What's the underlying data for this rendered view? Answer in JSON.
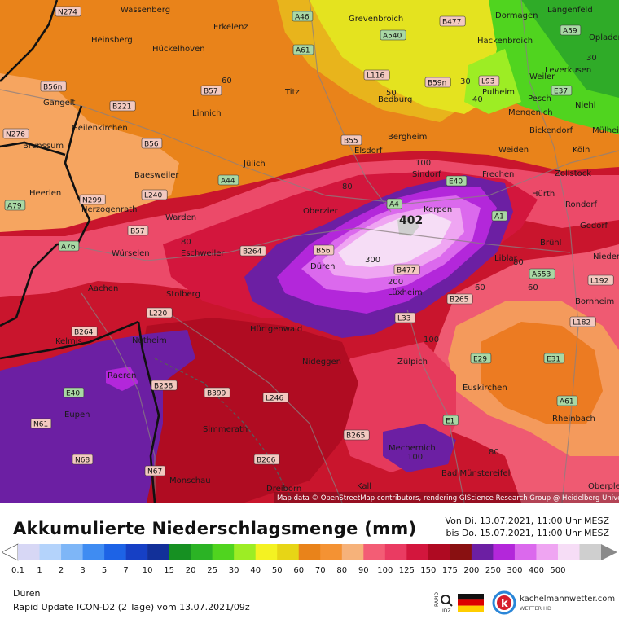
{
  "legend": {
    "title": "Akkumulierte Niederschlagsmenge (mm)",
    "period_from": "Von Di. 13.07.2021, 11:00 Uhr MESZ",
    "period_to": "bis Do. 15.07.2021, 11:00 Uhr MESZ",
    "location": "Düren",
    "model_run": "Rapid Update ICON-D2 (2 Tage) vom 13.07.2021/09z",
    "ticks": [
      "0.1",
      "1",
      "2",
      "3",
      "5",
      "7",
      "10",
      "15",
      "20",
      "25",
      "30",
      "40",
      "50",
      "60",
      "70",
      "80",
      "90",
      "100",
      "125",
      "150",
      "175",
      "200",
      "250",
      "300",
      "400",
      "500"
    ],
    "colors": [
      "#d7d7f5",
      "#b4d3fb",
      "#7eb6f7",
      "#3f8cf2",
      "#1d63e6",
      "#1640c5",
      "#123099",
      "#169022",
      "#2bb325",
      "#50d41f",
      "#9ded24",
      "#f4f222",
      "#e7d516",
      "#e9831a",
      "#f49233",
      "#f6b27a",
      "#f35d75",
      "#ea3b62",
      "#d3163d",
      "#af0a22",
      "#891011",
      "#6c1fa3",
      "#b327da",
      "#db69ed",
      "#efa5f2",
      "#f6ddf6",
      "#cfcfcf"
    ],
    "logo_text": "kachelmannwetter.com",
    "logo_sub": "WETTER HD",
    "radar_label": "RAPID IDZ"
  },
  "map": {
    "attribution": "Map data © OpenStreetMap contributors, rendering GIScience Research Group @ Heidelberg University",
    "max_value": "402",
    "places": [
      {
        "name": "Wassenberg"
      },
      {
        "name": "Erkelenz"
      },
      {
        "name": "Grevenbroich"
      },
      {
        "name": "Dormagen"
      },
      {
        "name": "Langenfeld"
      },
      {
        "name": "Heinsberg"
      },
      {
        "name": "Hückelhoven"
      },
      {
        "name": "Hackenbroich"
      },
      {
        "name": "Opladen"
      },
      {
        "name": "Leverkusen"
      },
      {
        "name": "Gangelt"
      },
      {
        "name": "Titz"
      },
      {
        "name": "Bedburg"
      },
      {
        "name": "Pulheim"
      },
      {
        "name": "Weiler"
      },
      {
        "name": "Linnich"
      },
      {
        "name": "Pesch"
      },
      {
        "name": "Niehl"
      },
      {
        "name": "Mengenich"
      },
      {
        "name": "Geilenkirchen"
      },
      {
        "name": "Bickendorf"
      },
      {
        "name": "Mülheim"
      },
      {
        "name": "Brunssum"
      },
      {
        "name": "Elsdorf"
      },
      {
        "name": "Bergheim"
      },
      {
        "name": "Weiden"
      },
      {
        "name": "Köln"
      },
      {
        "name": "Jülich"
      },
      {
        "name": "Baesweiler"
      },
      {
        "name": "Sindorf"
      },
      {
        "name": "Frechen"
      },
      {
        "name": "Zollstock"
      },
      {
        "name": "Heerlen"
      },
      {
        "name": "Hürth"
      },
      {
        "name": "Herzogenrath"
      },
      {
        "name": "Oberzier"
      },
      {
        "name": "Kerpen"
      },
      {
        "name": "Rondorf"
      },
      {
        "name": "Warden"
      },
      {
        "name": "Godorf"
      },
      {
        "name": "Brühl"
      },
      {
        "name": "Würselen"
      },
      {
        "name": "Eschweiler"
      },
      {
        "name": "Düren"
      },
      {
        "name": "Liblar"
      },
      {
        "name": "Niederkassel"
      },
      {
        "name": "Aachen"
      },
      {
        "name": "Stolberg"
      },
      {
        "name": "Lüxheim"
      },
      {
        "name": "Bornheim"
      },
      {
        "name": "Hürtgenwald"
      },
      {
        "name": "Kelmis"
      },
      {
        "name": "Nutheim"
      },
      {
        "name": "Nideggen"
      },
      {
        "name": "Zülpich"
      },
      {
        "name": "Raeren"
      },
      {
        "name": "Euskirchen"
      },
      {
        "name": "Eupen"
      },
      {
        "name": "Rheinbach"
      },
      {
        "name": "Simmerath"
      },
      {
        "name": "Mechernich"
      },
      {
        "name": "Monschau"
      },
      {
        "name": "Dreiborn"
      },
      {
        "name": "Kall"
      },
      {
        "name": "Bad Münstereifel"
      },
      {
        "name": "Oberpleis"
      }
    ],
    "roads": [
      "N274",
      "A46",
      "B477",
      "A59",
      "A61",
      "A540",
      "B56n",
      "L116",
      "B59n",
      "L93",
      "E37",
      "B221",
      "B57",
      "N276",
      "B56",
      "B55",
      "E40",
      "A44",
      "A4",
      "A79",
      "N299",
      "L240",
      "A1",
      "A76",
      "B264",
      "B56",
      "B477",
      "A553",
      "L192",
      "B57",
      "B265",
      "L33",
      "L220",
      "L182",
      "B264",
      "E29",
      "E31",
      "E40",
      "B258",
      "L246",
      "A61",
      "B399",
      "N61",
      "E1",
      "N68",
      "B265",
      "B266",
      "N67"
    ],
    "contour_values": [
      "30",
      "50",
      "30",
      "40",
      "60",
      "80",
      "100",
      "80",
      "300",
      "200",
      "100",
      "80",
      "60",
      "60",
      "80",
      "100"
    ]
  }
}
